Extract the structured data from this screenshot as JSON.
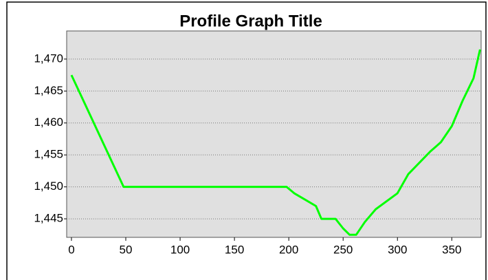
{
  "chart_data": {
    "type": "line",
    "title": "Profile Graph Title",
    "x": [
      0,
      48,
      198,
      205,
      215,
      225,
      230,
      243,
      250,
      256,
      262,
      270,
      280,
      300,
      310,
      330,
      340,
      350,
      360,
      370,
      376
    ],
    "series": [
      {
        "color": "#00ff00",
        "values": [
          1467.5,
          1450,
          1450,
          1449,
          1448,
          1447,
          1445,
          1445,
          1443.5,
          1442.5,
          1442.5,
          1444.5,
          1446.5,
          1449,
          1452,
          1455.5,
          1457,
          1459.5,
          1463.5,
          1467,
          1471.5
        ]
      }
    ],
    "xlim": [
      -4.4,
      377
    ],
    "xticks": [
      0,
      50,
      100,
      150,
      200,
      250,
      300,
      350
    ],
    "ylim": [
      1442.1,
      1474.4
    ],
    "yticks": [
      {
        "value": 1445,
        "label": "1,445"
      },
      {
        "value": 1450,
        "label": "1,450"
      },
      {
        "value": 1455,
        "label": "1,455"
      },
      {
        "value": 1460,
        "label": "1,460"
      },
      {
        "value": 1465,
        "label": "1,465"
      },
      {
        "value": 1470,
        "label": "1,470"
      }
    ],
    "grid": true
  }
}
